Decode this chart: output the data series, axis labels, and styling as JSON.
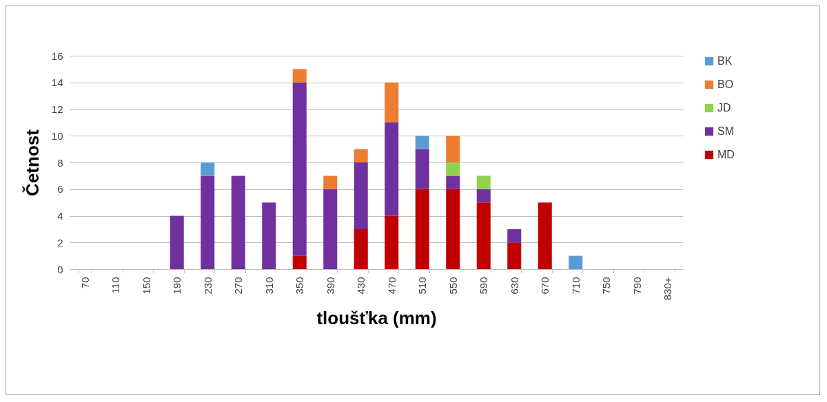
{
  "chart_data": {
    "type": "bar",
    "stacked": true,
    "xlabel": "tloušťka (mm)",
    "ylabel": "Četnost",
    "categories": [
      "70",
      "110",
      "150",
      "190",
      "230",
      "270",
      "310",
      "350",
      "390",
      "430",
      "470",
      "510",
      "550",
      "590",
      "630",
      "670",
      "710",
      "750",
      "790",
      "830+"
    ],
    "series": [
      {
        "name": "MD",
        "color": "#c00000",
        "values": [
          null,
          null,
          null,
          null,
          null,
          null,
          null,
          1,
          null,
          3,
          4,
          6,
          6,
          5,
          2,
          5,
          null,
          null,
          null,
          null
        ]
      },
      {
        "name": "SM",
        "color": "#7030a0",
        "values": [
          null,
          null,
          null,
          4,
          7,
          7,
          5,
          13,
          6,
          5,
          7,
          3,
          1,
          1,
          1,
          null,
          null,
          null,
          null,
          null
        ]
      },
      {
        "name": "JD",
        "color": "#92d050",
        "values": [
          null,
          null,
          null,
          null,
          null,
          null,
          null,
          null,
          null,
          null,
          null,
          null,
          1,
          1,
          null,
          null,
          null,
          null,
          null,
          null
        ]
      },
      {
        "name": "BO",
        "color": "#ed7d31",
        "values": [
          null,
          null,
          null,
          null,
          null,
          null,
          null,
          1,
          1,
          1,
          3,
          null,
          2,
          null,
          null,
          null,
          null,
          null,
          null,
          null
        ]
      },
      {
        "name": "BK",
        "color": "#5b9bd5",
        "values": [
          null,
          null,
          null,
          null,
          1,
          null,
          null,
          null,
          null,
          null,
          null,
          1,
          null,
          null,
          null,
          null,
          1,
          null,
          null,
          null
        ]
      }
    ],
    "ylim": [
      0,
      16
    ],
    "yticks": [
      0,
      2,
      4,
      6,
      8,
      10,
      12,
      14,
      16
    ],
    "grid": "y",
    "legend": "right"
  }
}
